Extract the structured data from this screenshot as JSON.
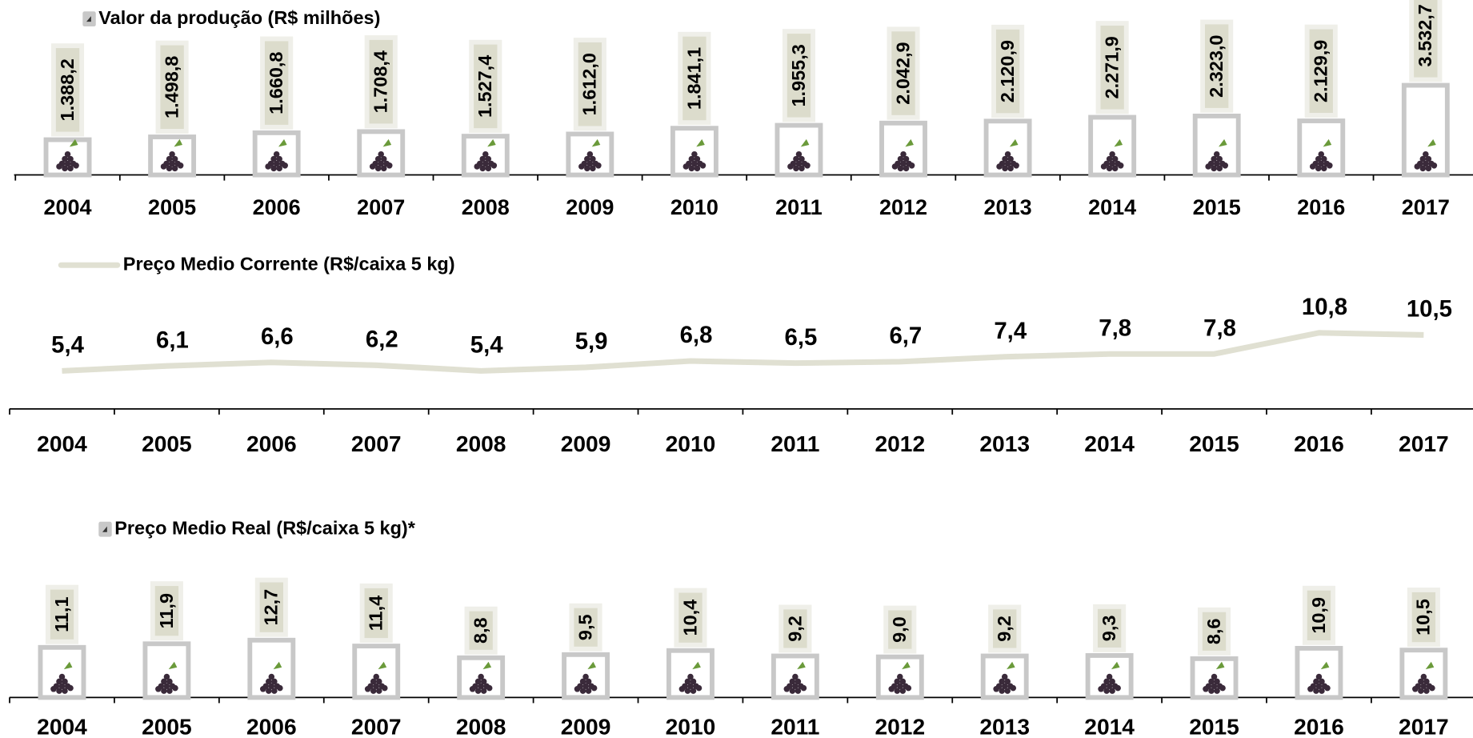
{
  "chart_data": [
    {
      "type": "bar",
      "categories": [
        "2004",
        "2005",
        "2006",
        "2007",
        "2008",
        "2009",
        "2010",
        "2011",
        "2012",
        "2013",
        "2014",
        "2015",
        "2016",
        "2017"
      ],
      "series": [
        {
          "name": "Valor da produção (R$ milhões)",
          "color": "#c8c8c8",
          "values": [
            1388.2,
            1498.8,
            1660.8,
            1708.4,
            1527.4,
            1612.0,
            1841.1,
            1955.3,
            2042.9,
            2120.9,
            2271.9,
            2323.0,
            2129.9,
            3532.7
          ],
          "value_labels": [
            "1.388,2",
            "1.498,8",
            "1.660,8",
            "1.708,4",
            "1.527,4",
            "1.612,0",
            "1.841,1",
            "1.955,3",
            "2.042,9",
            "2.120,9",
            "2.271,9",
            "2.323,0",
            "2.129,9",
            "3.532,7"
          ]
        }
      ]
    },
    {
      "type": "line",
      "categories": [
        "2004",
        "2005",
        "2006",
        "2007",
        "2008",
        "2009",
        "2010",
        "2011",
        "2012",
        "2013",
        "2014",
        "2015",
        "2016",
        "2017"
      ],
      "series": [
        {
          "name": "Preço Medio Corrente (R$/caixa 5 kg)",
          "color": "#e0e0d2",
          "values": [
            5.4,
            6.1,
            6.6,
            6.2,
            5.4,
            5.9,
            6.8,
            6.5,
            6.7,
            7.4,
            7.8,
            7.8,
            10.8,
            10.5
          ],
          "value_labels": [
            "5,4",
            "6,1",
            "6,6",
            "6,2",
            "5,4",
            "5,9",
            "6,8",
            "6,5",
            "6,7",
            "7,4",
            "7,8",
            "7,8",
            "10,8",
            "10,5"
          ]
        }
      ]
    },
    {
      "type": "bar",
      "categories": [
        "2004",
        "2005",
        "2006",
        "2007",
        "2008",
        "2009",
        "2010",
        "2011",
        "2012",
        "2013",
        "2014",
        "2015",
        "2016",
        "2017"
      ],
      "series": [
        {
          "name": "Preço Medio Real (R$/caixa 5 kg)*",
          "color": "#c8c8c8",
          "values": [
            11.1,
            11.9,
            12.7,
            11.4,
            8.8,
            9.5,
            10.4,
            9.2,
            9.0,
            9.2,
            9.3,
            8.6,
            10.9,
            10.5
          ],
          "value_labels": [
            "11,1",
            "11,9",
            "12,7",
            "11,4",
            "8,8",
            "9,5",
            "10,4",
            "9,2",
            "9,0",
            "9,2",
            "9,3",
            "8,6",
            "10,9",
            "10,5"
          ]
        }
      ]
    }
  ]
}
